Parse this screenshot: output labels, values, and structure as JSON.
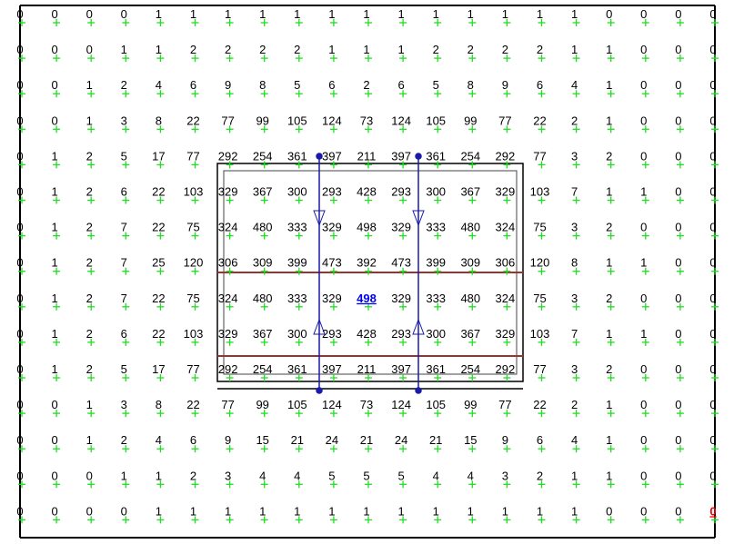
{
  "grid": {
    "rows": [
      [
        0,
        0,
        0,
        0,
        1,
        1,
        1,
        1,
        1,
        1,
        1,
        1,
        1,
        1,
        1,
        1,
        1,
        0,
        0,
        0,
        0
      ],
      [
        0,
        0,
        0,
        1,
        1,
        2,
        2,
        2,
        2,
        1,
        1,
        1,
        2,
        2,
        2,
        2,
        1,
        1,
        0,
        0,
        0
      ],
      [
        0,
        0,
        1,
        2,
        4,
        6,
        9,
        8,
        5,
        6,
        2,
        6,
        5,
        8,
        9,
        6,
        4,
        1,
        0,
        0,
        0
      ],
      [
        0,
        0,
        1,
        3,
        8,
        22,
        77,
        99,
        105,
        124,
        73,
        124,
        105,
        99,
        77,
        22,
        2,
        1,
        0,
        0,
        0
      ],
      [
        0,
        1,
        2,
        5,
        17,
        77,
        292,
        254,
        361,
        397,
        211,
        397,
        361,
        254,
        292,
        77,
        3,
        2,
        0,
        0,
        0
      ],
      [
        0,
        1,
        2,
        6,
        22,
        103,
        329,
        367,
        300,
        293,
        428,
        293,
        300,
        367,
        329,
        103,
        7,
        1,
        1,
        0,
        0
      ],
      [
        0,
        1,
        2,
        7,
        22,
        75,
        324,
        480,
        333,
        329,
        498,
        329,
        333,
        480,
        324,
        75,
        3,
        2,
        0,
        0,
        0
      ],
      [
        0,
        1,
        2,
        7,
        25,
        120,
        306,
        309,
        399,
        473,
        392,
        473,
        399,
        309,
        306,
        120,
        8,
        1,
        1,
        0,
        0
      ],
      [
        0,
        1,
        2,
        7,
        22,
        75,
        324,
        480,
        333,
        329,
        498,
        329,
        333,
        480,
        324,
        75,
        3,
        2,
        0,
        0,
        0
      ],
      [
        0,
        1,
        2,
        6,
        22,
        103,
        329,
        367,
        300,
        293,
        428,
        293,
        300,
        367,
        329,
        103,
        7,
        1,
        1,
        0,
        0
      ],
      [
        0,
        1,
        2,
        5,
        17,
        77,
        292,
        254,
        361,
        397,
        211,
        397,
        361,
        254,
        292,
        77,
        3,
        2,
        0,
        0,
        0
      ],
      [
        0,
        0,
        1,
        3,
        8,
        22,
        77,
        99,
        105,
        124,
        73,
        124,
        105,
        99,
        77,
        22,
        2,
        1,
        0,
        0,
        0
      ],
      [
        0,
        0,
        1,
        2,
        4,
        6,
        9,
        15,
        21,
        24,
        21,
        24,
        21,
        15,
        9,
        6,
        4,
        1,
        0,
        0,
        0
      ],
      [
        0,
        0,
        0,
        1,
        1,
        2,
        3,
        4,
        4,
        5,
        5,
        5,
        4,
        4,
        3,
        2,
        1,
        1,
        0,
        0,
        0
      ],
      [
        0,
        0,
        0,
        0,
        1,
        1,
        1,
        1,
        1,
        1,
        1,
        1,
        1,
        1,
        1,
        1,
        1,
        0,
        0,
        0,
        0
      ]
    ],
    "highlights": [
      {
        "row": 8,
        "col": 10,
        "color": "#0000ee"
      },
      {
        "row": 14,
        "col": 20,
        "color": "#ee0000"
      }
    ]
  },
  "colors": {
    "cross": "#22dd22",
    "frame": "#000000",
    "link": "#1a1aaa",
    "spine": "#993333",
    "inner": "#444444"
  }
}
